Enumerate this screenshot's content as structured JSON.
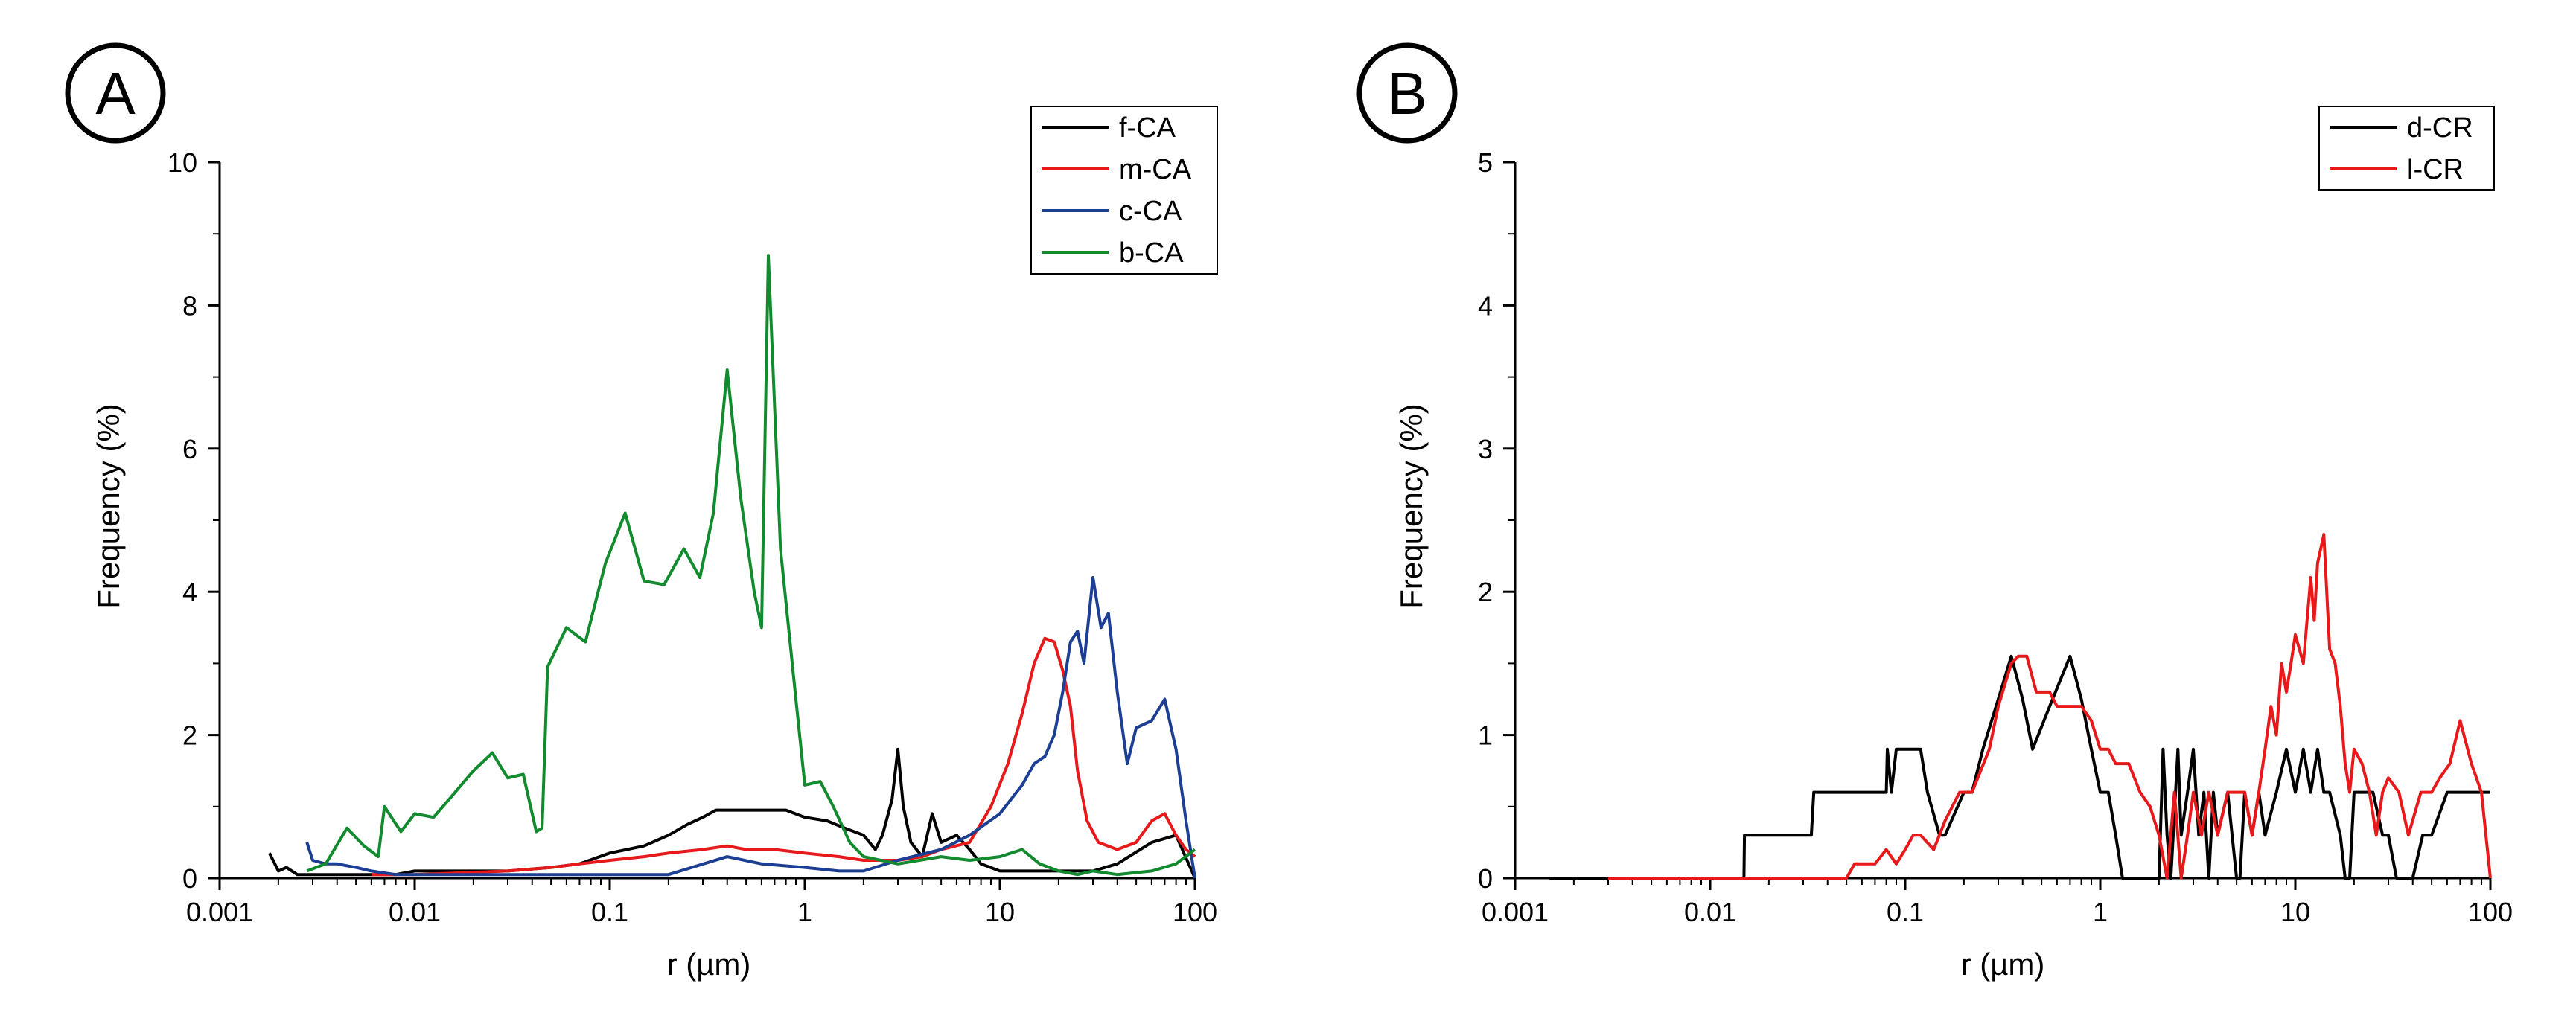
{
  "colors": {
    "black": "#000000",
    "red": "#e8191b",
    "blue": "#1c3f94",
    "green": "#128a2e"
  },
  "chart_data": [
    {
      "type": "line",
      "panel": "A",
      "xscale": "log",
      "xlim": [
        0.001,
        100
      ],
      "ylim": [
        0,
        10
      ],
      "xticks": [
        "0.001",
        "0.01",
        "0.1",
        "1",
        "10",
        "100"
      ],
      "yticks": [
        "0",
        "2",
        "4",
        "6",
        "8",
        "10"
      ],
      "xlabel": "r (µm)",
      "ylabel": "Frequency (%)",
      "legend_position": "top-right",
      "series": [
        {
          "name": "f-CA",
          "color": "#000000",
          "x": [
            0.0018,
            0.002,
            0.0022,
            0.0025,
            0.003,
            0.004,
            0.006,
            0.008,
            0.01,
            0.015,
            0.02,
            0.03,
            0.05,
            0.07,
            0.1,
            0.15,
            0.2,
            0.25,
            0.3,
            0.35,
            0.4,
            0.5,
            0.6,
            0.8,
            1.0,
            1.3,
            1.6,
            2.0,
            2.3,
            2.5,
            2.8,
            3.0,
            3.2,
            3.5,
            4.0,
            4.5,
            5.0,
            6.0,
            7.0,
            8.0,
            10,
            15,
            20,
            30,
            40,
            60,
            80,
            100
          ],
          "y": [
            0.35,
            0.1,
            0.15,
            0.05,
            0.05,
            0.05,
            0.05,
            0.05,
            0.1,
            0.1,
            0.1,
            0.1,
            0.15,
            0.2,
            0.35,
            0.45,
            0.6,
            0.75,
            0.85,
            0.95,
            0.95,
            0.95,
            0.95,
            0.95,
            0.85,
            0.8,
            0.7,
            0.6,
            0.4,
            0.6,
            1.1,
            1.8,
            1.0,
            0.5,
            0.3,
            0.9,
            0.5,
            0.6,
            0.4,
            0.2,
            0.1,
            0.1,
            0.1,
            0.1,
            0.2,
            0.5,
            0.6,
            0.0
          ]
        },
        {
          "name": "m-CA",
          "color": "#e8191b",
          "x": [
            0.006,
            0.01,
            0.02,
            0.03,
            0.05,
            0.07,
            0.1,
            0.15,
            0.2,
            0.3,
            0.4,
            0.5,
            0.7,
            1.0,
            1.5,
            2.0,
            3.0,
            4.0,
            5.0,
            7.0,
            9.0,
            11,
            13,
            15,
            17,
            19,
            21,
            23,
            25,
            28,
            32,
            40,
            50,
            60,
            70,
            80,
            90,
            100
          ],
          "y": [
            0.05,
            0.05,
            0.08,
            0.1,
            0.15,
            0.2,
            0.25,
            0.3,
            0.35,
            0.4,
            0.45,
            0.4,
            0.4,
            0.35,
            0.3,
            0.25,
            0.25,
            0.3,
            0.4,
            0.5,
            1.0,
            1.6,
            2.3,
            3.0,
            3.35,
            3.3,
            2.9,
            2.4,
            1.5,
            0.8,
            0.5,
            0.4,
            0.5,
            0.8,
            0.9,
            0.6,
            0.4,
            0.3
          ]
        },
        {
          "name": "c-CA",
          "color": "#1c3f94",
          "x": [
            0.0028,
            0.003,
            0.0035,
            0.004,
            0.005,
            0.006,
            0.008,
            0.01,
            0.02,
            0.05,
            0.1,
            0.2,
            0.4,
            0.6,
            1.0,
            1.5,
            2.0,
            3.0,
            5.0,
            7.0,
            10,
            13,
            15,
            17,
            19,
            21,
            23,
            25,
            27,
            30,
            33,
            36,
            40,
            45,
            50,
            60,
            70,
            80,
            90,
            100
          ],
          "y": [
            0.5,
            0.25,
            0.2,
            0.2,
            0.15,
            0.1,
            0.05,
            0.05,
            0.05,
            0.05,
            0.05,
            0.05,
            0.3,
            0.2,
            0.15,
            0.1,
            0.1,
            0.25,
            0.4,
            0.6,
            0.9,
            1.3,
            1.6,
            1.7,
            2.0,
            2.6,
            3.3,
            3.45,
            3.0,
            4.2,
            3.5,
            3.7,
            2.6,
            1.6,
            2.1,
            2.2,
            2.5,
            1.8,
            0.8,
            0.0
          ]
        },
        {
          "name": "b-CA",
          "color": "#128a2e",
          "x": [
            0.0028,
            0.0035,
            0.0045,
            0.0055,
            0.0065,
            0.007,
            0.0085,
            0.01,
            0.0125,
            0.015,
            0.02,
            0.025,
            0.03,
            0.036,
            0.042,
            0.045,
            0.048,
            0.06,
            0.075,
            0.095,
            0.12,
            0.15,
            0.19,
            0.24,
            0.29,
            0.34,
            0.4,
            0.47,
            0.55,
            0.6,
            0.65,
            0.75,
            0.9,
            1.0,
            1.2,
            1.4,
            1.7,
            2.0,
            3.0,
            5.0,
            7.0,
            10,
            13,
            16,
            20,
            25,
            30,
            40,
            60,
            80,
            100
          ],
          "y": [
            0.1,
            0.2,
            0.7,
            0.45,
            0.3,
            1.0,
            0.65,
            0.9,
            0.85,
            1.1,
            1.5,
            1.75,
            1.4,
            1.45,
            0.65,
            0.7,
            2.95,
            3.5,
            3.3,
            4.4,
            5.1,
            4.15,
            4.1,
            4.6,
            4.2,
            5.1,
            7.1,
            5.3,
            4.0,
            3.5,
            8.7,
            4.6,
            2.5,
            1.3,
            1.35,
            1.0,
            0.5,
            0.3,
            0.2,
            0.3,
            0.25,
            0.3,
            0.4,
            0.2,
            0.1,
            0.05,
            0.1,
            0.05,
            0.1,
            0.2,
            0.4
          ]
        }
      ]
    },
    {
      "type": "line",
      "panel": "B",
      "xscale": "log",
      "xlim": [
        0.001,
        100
      ],
      "ylim": [
        0,
        5
      ],
      "xticks": [
        "0.001",
        "0.01",
        "0.1",
        "1",
        "10",
        "100"
      ],
      "yticks": [
        "0",
        "1",
        "2",
        "3",
        "4",
        "5"
      ],
      "xlabel": "r (µm)",
      "ylabel": "Frequency (%)",
      "legend_position": "top-right",
      "series": [
        {
          "name": "d-CR",
          "color": "#000000",
          "x": [
            0.0015,
            0.0149,
            0.015,
            0.033,
            0.034,
            0.08,
            0.081,
            0.085,
            0.09,
            0.12,
            0.13,
            0.15,
            0.16,
            0.2,
            0.22,
            0.25,
            0.3,
            0.35,
            0.4,
            0.45,
            0.55,
            0.7,
            0.8,
            0.9,
            1.0,
            1.1,
            1.2,
            1.3,
            1.35,
            2.0,
            2.1,
            2.2,
            2.3,
            2.5,
            2.6,
            2.8,
            3.0,
            3.2,
            3.4,
            3.6,
            3.8,
            4.0,
            4.5,
            5.0,
            5.2,
            5.5,
            6.0,
            6.5,
            7.0,
            8.0,
            9.0,
            10,
            11,
            12,
            13,
            14,
            15,
            17,
            18,
            19,
            20,
            22,
            25,
            28,
            30,
            33,
            35,
            40,
            45,
            50,
            60,
            70,
            80,
            90,
            100
          ],
          "y": [
            0.0,
            0.0,
            0.3,
            0.3,
            0.6,
            0.6,
            0.9,
            0.6,
            0.9,
            0.9,
            0.6,
            0.3,
            0.3,
            0.6,
            0.6,
            0.9,
            1.25,
            1.55,
            1.25,
            0.9,
            1.2,
            1.55,
            1.25,
            0.9,
            0.6,
            0.6,
            0.3,
            0.0,
            0.0,
            0.0,
            0.9,
            0.3,
            0.0,
            0.9,
            0.3,
            0.6,
            0.9,
            0.3,
            0.6,
            0.0,
            0.6,
            0.3,
            0.6,
            0.0,
            0.0,
            0.6,
            0.3,
            0.6,
            0.3,
            0.6,
            0.9,
            0.6,
            0.9,
            0.6,
            0.9,
            0.6,
            0.6,
            0.3,
            0.0,
            0.0,
            0.6,
            0.6,
            0.6,
            0.3,
            0.3,
            0.0,
            0.0,
            0.0,
            0.3,
            0.3,
            0.6,
            0.6,
            0.6,
            0.6,
            0.6
          ]
        },
        {
          "name": "l-CR",
          "color": "#e8191b",
          "x": [
            0.003,
            0.05,
            0.055,
            0.07,
            0.08,
            0.09,
            0.1,
            0.11,
            0.12,
            0.14,
            0.16,
            0.19,
            0.22,
            0.27,
            0.3,
            0.35,
            0.38,
            0.42,
            0.47,
            0.55,
            0.6,
            0.7,
            0.8,
            0.9,
            1.0,
            1.1,
            1.2,
            1.4,
            1.6,
            1.8,
            2.0,
            2.2,
            2.4,
            2.6,
            2.8,
            3.0,
            3.3,
            3.6,
            4.0,
            4.5,
            5.0,
            5.5,
            6.0,
            6.5,
            7.0,
            7.5,
            8.0,
            8.5,
            9.0,
            9.5,
            10,
            11,
            12,
            12.5,
            13,
            14,
            15,
            16,
            17,
            18,
            19,
            20,
            22,
            24,
            26,
            28,
            30,
            34,
            38,
            44,
            50,
            55,
            62,
            70,
            80,
            90,
            100
          ],
          "y": [
            0.0,
            0.0,
            0.1,
            0.1,
            0.2,
            0.1,
            0.2,
            0.3,
            0.3,
            0.2,
            0.4,
            0.6,
            0.6,
            0.9,
            1.2,
            1.5,
            1.55,
            1.55,
            1.3,
            1.3,
            1.2,
            1.2,
            1.2,
            1.1,
            0.9,
            0.9,
            0.8,
            0.8,
            0.6,
            0.5,
            0.3,
            0.0,
            0.6,
            0.0,
            0.3,
            0.6,
            0.3,
            0.6,
            0.3,
            0.6,
            0.6,
            0.6,
            0.3,
            0.6,
            0.9,
            1.2,
            1.0,
            1.5,
            1.3,
            1.5,
            1.7,
            1.5,
            2.1,
            1.8,
            2.2,
            2.4,
            1.6,
            1.5,
            1.2,
            0.8,
            0.6,
            0.9,
            0.8,
            0.6,
            0.3,
            0.6,
            0.7,
            0.6,
            0.3,
            0.6,
            0.6,
            0.7,
            0.8,
            1.1,
            0.8,
            0.6,
            0.0
          ]
        }
      ]
    }
  ]
}
